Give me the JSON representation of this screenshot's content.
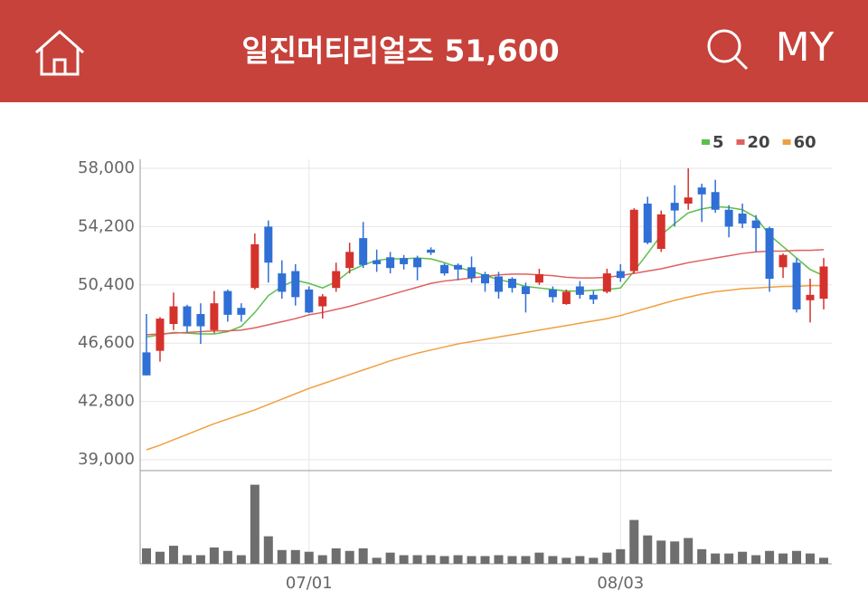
{
  "header": {
    "title": "일진머티리얼즈 51,600",
    "my": "MY"
  },
  "chart_data": {
    "type": "candlestick",
    "categories": [
      null,
      null,
      null,
      null,
      null,
      null,
      null,
      null,
      null,
      null,
      null,
      null,
      "07/01",
      null,
      null,
      null,
      null,
      null,
      null,
      null,
      null,
      null,
      null,
      null,
      null,
      null,
      null,
      null,
      null,
      null,
      null,
      null,
      null,
      null,
      null,
      "08/03",
      null,
      null,
      null,
      null,
      null,
      null,
      null,
      null,
      null,
      null,
      null,
      null,
      null,
      null,
      null
    ],
    "open": [
      46000,
      46100,
      47850,
      49000,
      48500,
      47450,
      50000,
      48900,
      50200,
      54200,
      51150,
      51300,
      50100,
      49000,
      50200,
      51500,
      53450,
      52000,
      52200,
      52150,
      52150,
      52700,
      51700,
      51700,
      51550,
      51100,
      50950,
      50800,
      50300,
      50550,
      50100,
      49150,
      50300,
      49750,
      49950,
      51300,
      51300,
      55700,
      52750,
      55750,
      55700,
      56750,
      56450,
      55300,
      55050,
      54600,
      54100,
      51550,
      51850,
      49400,
      49500
    ],
    "close": [
      44500,
      48200,
      49000,
      47700,
      47700,
      49200,
      48450,
      48450,
      53050,
      51850,
      49950,
      49600,
      48600,
      49650,
      51300,
      52550,
      51700,
      51750,
      51500,
      51750,
      51550,
      52500,
      51150,
      51400,
      50850,
      50500,
      49950,
      50200,
      49800,
      51100,
      49600,
      49950,
      49750,
      49450,
      51150,
      50850,
      55300,
      53150,
      55000,
      55250,
      56100,
      56300,
      55300,
      54200,
      54400,
      54100,
      50800,
      52350,
      48800,
      49750,
      51600
    ],
    "high": [
      48500,
      48300,
      49900,
      49100,
      49200,
      50000,
      50100,
      49200,
      53750,
      54600,
      52000,
      51750,
      50300,
      49800,
      51850,
      53150,
      54500,
      52700,
      52550,
      52350,
      52300,
      52850,
      51800,
      51800,
      52250,
      51250,
      51250,
      50900,
      50550,
      51450,
      50300,
      50100,
      50650,
      50000,
      51450,
      51750,
      55400,
      56150,
      55250,
      56900,
      58000,
      57000,
      57250,
      55600,
      55700,
      54950,
      54200,
      52450,
      52150,
      50800,
      52150
    ],
    "low": [
      44500,
      45400,
      47450,
      47300,
      46550,
      47250,
      48000,
      48000,
      50100,
      50550,
      49500,
      49050,
      48550,
      48200,
      49950,
      51150,
      51500,
      51250,
      51150,
      51400,
      50700,
      52350,
      51000,
      50700,
      50550,
      49950,
      49500,
      49900,
      48600,
      50400,
      49250,
      49100,
      49500,
      49150,
      49850,
      50600,
      51150,
      53050,
      52550,
      54200,
      55300,
      54500,
      55100,
      53500,
      54100,
      52550,
      49950,
      50850,
      48600,
      47950,
      48800
    ],
    "up_color": "#d5322c",
    "down_color": "#2f6fd6",
    "series": [
      {
        "name": "5",
        "color": "#5bbf4a",
        "values": [
          47000,
          47150,
          47300,
          47250,
          47200,
          47200,
          47350,
          47700,
          48600,
          49700,
          50300,
          50700,
          50500,
          50200,
          50600,
          51300,
          51700,
          52000,
          52100,
          52100,
          52150,
          52100,
          51850,
          51550,
          51300,
          51000,
          50750,
          50550,
          50300,
          50200,
          50100,
          50000,
          50000,
          50050,
          50100,
          50200,
          51300,
          52450,
          53650,
          54400,
          55100,
          55350,
          55500,
          55450,
          55300,
          54800,
          53650,
          52900,
          52150,
          51400,
          51000
        ]
      },
      {
        "name": "20",
        "color": "#e06060",
        "values": [
          47150,
          47200,
          47250,
          47300,
          47350,
          47400,
          47400,
          47450,
          47600,
          47800,
          48000,
          48200,
          48450,
          48600,
          48800,
          49000,
          49250,
          49500,
          49750,
          50000,
          50250,
          50500,
          50650,
          50750,
          50850,
          50950,
          51050,
          51100,
          51100,
          51050,
          51000,
          50900,
          50850,
          50850,
          50900,
          51000,
          51150,
          51300,
          51450,
          51650,
          51850,
          52000,
          52150,
          52300,
          52450,
          52550,
          52600,
          52600,
          52650,
          52650,
          52700
        ]
      },
      {
        "name": "60",
        "color": "#f0a040",
        "values": [
          39650,
          39950,
          40300,
          40650,
          41000,
          41350,
          41650,
          41950,
          42250,
          42600,
          42950,
          43300,
          43650,
          43950,
          44250,
          44550,
          44850,
          45150,
          45450,
          45700,
          45950,
          46150,
          46350,
          46550,
          46700,
          46850,
          47000,
          47150,
          47300,
          47450,
          47600,
          47750,
          47900,
          48050,
          48200,
          48400,
          48650,
          48900,
          49150,
          49400,
          49600,
          49800,
          49950,
          50050,
          50150,
          50200,
          50250,
          50300,
          50300,
          50350,
          50350
        ]
      }
    ],
    "volume": [
      18,
      14,
      21,
      10,
      10,
      19,
      15,
      10,
      92,
      32,
      16,
      16,
      14,
      10,
      18,
      15,
      18,
      7,
      13,
      10,
      10,
      10,
      9,
      10,
      9,
      9,
      10,
      9,
      9,
      13,
      9,
      7,
      9,
      7,
      13,
      17,
      51,
      33,
      27,
      26,
      30,
      17,
      12,
      12,
      14,
      10,
      15,
      12,
      15,
      12,
      7
    ],
    "volume_color": "#6e6e6e",
    "volume_ylim": [
      0,
      100
    ],
    "ylim": [
      39000,
      58000
    ],
    "yticks": [
      {
        "value": 39000,
        "label": "39,000"
      },
      {
        "value": 42800,
        "label": "42,800"
      },
      {
        "value": 46600,
        "label": "46,600"
      },
      {
        "value": 50400,
        "label": "50,400"
      },
      {
        "value": 54200,
        "label": "54,200"
      },
      {
        "value": 58000,
        "label": "58,000"
      }
    ],
    "grid": true
  }
}
